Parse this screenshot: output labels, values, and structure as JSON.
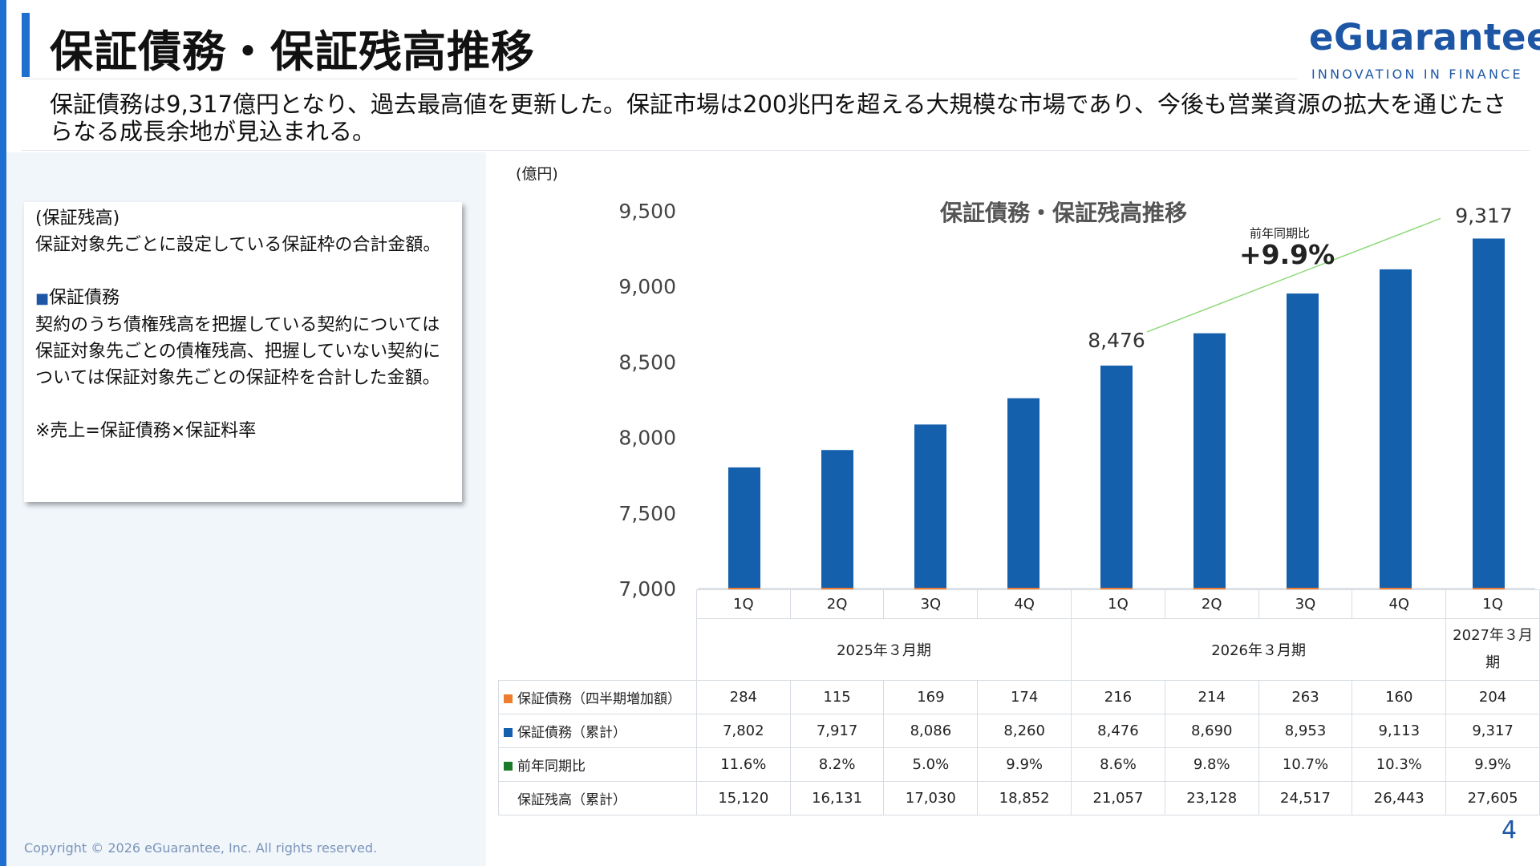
{
  "header": {
    "title": "保証債務・保証残高推移",
    "logo": "eGuarantee",
    "logo_tagline": "INNOVATION IN FINANCE"
  },
  "summary": "保証債務は9,317億円となり、過去最高値を更新した。保証市場は200兆円を超える大規模な市場であり、今後も営業資源の拡大を通じたさらなる成長余地が見込まれる。",
  "definitions": {
    "heading": "(保証残高)",
    "heading_text": "保証対象先ごとに設定している保証枠の合計金額。",
    "item_marker": "■",
    "item_title": "保証債務",
    "item_text": "契約のうち債権残高を把握している契約については保証対象先ごとの債権残高、把握していない契約については保証対象先ごとの保証枠を合計した金額。",
    "note": "※売上=保証債務×保証料率"
  },
  "chart_data": {
    "type": "bar",
    "title": "保証債務・保証残高推移",
    "unit_label": "(億円)",
    "ylim": [
      7000,
      9500
    ],
    "yticks": [
      "7,000",
      "7,500",
      "8,000",
      "8,500",
      "9,000",
      "9,500"
    ],
    "categories": [
      "1Q",
      "2Q",
      "3Q",
      "4Q",
      "1Q",
      "2Q",
      "3Q",
      "4Q",
      "1Q"
    ],
    "fiscal_years": [
      {
        "label": "2025年３月期",
        "span": 4
      },
      {
        "label": "2026年３月期",
        "span": 4
      },
      {
        "label": "2027年３月期",
        "span": 1
      }
    ],
    "series": [
      {
        "name": "保証債務（四半期増加額）",
        "color": "#ed7d31",
        "values": [
          284,
          115,
          169,
          174,
          216,
          214,
          263,
          160,
          204
        ]
      },
      {
        "name": "保証債務（累計）",
        "color": "#1560ad",
        "values": [
          7802,
          7917,
          8086,
          8260,
          8476,
          8690,
          8953,
          9113,
          9317
        ]
      },
      {
        "name": "前年同期比",
        "color": "#1a7a2a",
        "values": [
          "11.6%",
          "8.2%",
          "5.0%",
          "9.9%",
          "8.6%",
          "9.8%",
          "10.7%",
          "10.3%",
          "9.9%"
        ]
      },
      {
        "name": "保証残高（累計）",
        "color": "",
        "values": [
          "15,120",
          "16,131",
          "17,030",
          "18,852",
          "21,057",
          "23,128",
          "24,517",
          "26,443",
          "27,605"
        ]
      }
    ],
    "table_rows": [
      {
        "label": "保証債務（四半期増加額）",
        "color": "#ed7d31",
        "values": [
          "284",
          "115",
          "169",
          "174",
          "216",
          "214",
          "263",
          "160",
          "204"
        ]
      },
      {
        "label": "保証債務（累計）",
        "color": "#1560ad",
        "values": [
          "7,802",
          "7,917",
          "8,086",
          "8,260",
          "8,476",
          "8,690",
          "8,953",
          "9,113",
          "9,317"
        ]
      },
      {
        "label": "前年同期比",
        "color": "#1a7a2a",
        "values": [
          "11.6%",
          "8.2%",
          "5.0%",
          "9.9%",
          "8.6%",
          "9.8%",
          "10.7%",
          "10.3%",
          "9.9%"
        ]
      },
      {
        "label": "保証残高（累計）",
        "color": "",
        "values": [
          "15,120",
          "16,131",
          "17,030",
          "18,852",
          "21,057",
          "23,128",
          "24,517",
          "26,443",
          "27,605"
        ]
      }
    ],
    "annotations": {
      "start_label": "8,476",
      "end_label": "9,317",
      "yoy_label": "前年同期比",
      "yoy_value": "+9.9%",
      "trend_color": "#8fd97a"
    }
  },
  "footer": {
    "copyright": "Copyright © 2026 eGuarantee, Inc. All rights reserved.",
    "page_number": "4"
  }
}
